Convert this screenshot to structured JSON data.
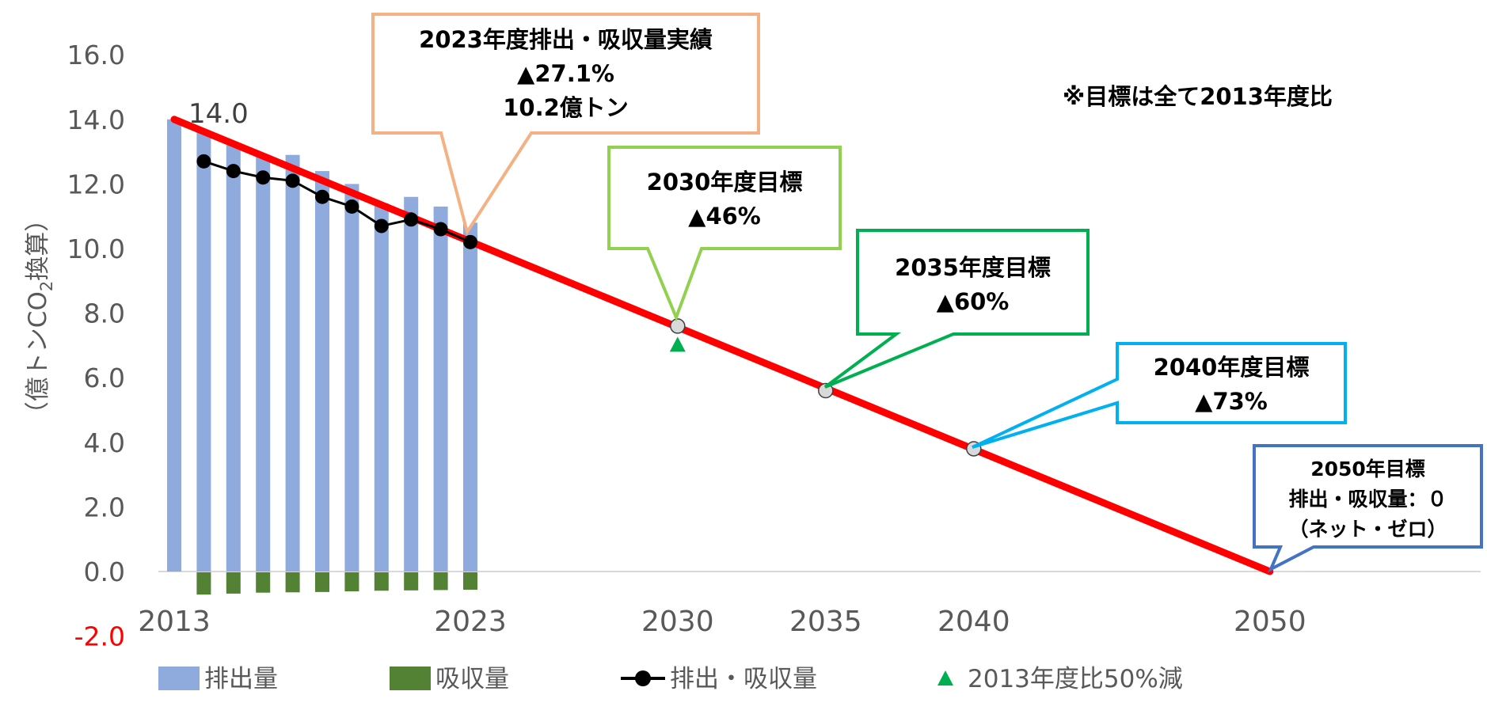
{
  "chart_data": {
    "type": "bar",
    "title": "",
    "ylabel": "（億トンCO2換算）",
    "ylabel_parts": {
      "pre": "（億トンCO",
      "sub": "2",
      "post": "換算）"
    },
    "ylim": [
      -2.0,
      16.0
    ],
    "yticks": [
      "16.0",
      "14.0",
      "12.0",
      "10.0",
      "8.0",
      "6.0",
      "4.0",
      "2.0",
      "0.0",
      "-2.0"
    ],
    "ytick_values": [
      16,
      14,
      12,
      10,
      8,
      6,
      4,
      2,
      0,
      -2
    ],
    "xlim": [
      2013,
      2050
    ],
    "xticks": [
      "2013",
      "2023",
      "2030",
      "2035",
      "2040",
      "2050"
    ],
    "xtick_values": [
      2013,
      2023,
      2030,
      2035,
      2040,
      2050
    ],
    "years": [
      2013,
      2014,
      2015,
      2016,
      2017,
      2018,
      2019,
      2020,
      2021,
      2022,
      2023
    ],
    "series": [
      {
        "name": "排出量",
        "type": "bar",
        "color": "#8FAADC",
        "values": [
          14.0,
          13.6,
          13.2,
          12.9,
          12.9,
          12.4,
          12.0,
          11.4,
          11.6,
          11.3,
          10.8
        ]
      },
      {
        "name": "吸収量",
        "type": "bar",
        "color": "#548235",
        "values": [
          null,
          -0.69,
          -0.66,
          -0.63,
          -0.62,
          -0.61,
          -0.59,
          -0.57,
          -0.56,
          -0.55,
          -0.54
        ]
      },
      {
        "name": "排出・吸収量",
        "type": "line",
        "color": "#000000",
        "values": [
          null,
          12.7,
          12.4,
          12.2,
          12.1,
          11.6,
          11.3,
          10.7,
          10.9,
          10.6,
          10.2
        ]
      },
      {
        "name": "2013年度比50%減",
        "type": "marker",
        "color": "#00B050",
        "points": [
          {
            "x": 2030,
            "y": 7.0
          }
        ]
      }
    ],
    "target_line": {
      "color": "#FF0000",
      "points": [
        {
          "x": 2013,
          "y": 14.0
        },
        {
          "x": 2050,
          "y": 0.0
        }
      ]
    },
    "target_points": [
      {
        "x": 2030,
        "y": 7.6
      },
      {
        "x": 2035,
        "y": 5.6
      },
      {
        "x": 2040,
        "y": 3.8
      }
    ],
    "data_label": "14.0",
    "note": "※目標は全て2013年度比",
    "annotations": [
      {
        "id": "actual-2023",
        "color": "#F4B183",
        "lines": [
          "2023年度排出・吸収量実績",
          "▲27.1%",
          "10.2億トン"
        ]
      },
      {
        "id": "target-2030",
        "color": "#92D050",
        "lines": [
          "2030年度目標",
          "▲46%"
        ]
      },
      {
        "id": "target-2035",
        "color": "#00B050",
        "lines": [
          "2035年度目標",
          "▲60%"
        ]
      },
      {
        "id": "target-2040",
        "color": "#00B0F0",
        "lines": [
          "2040年度目標",
          "▲73%"
        ]
      },
      {
        "id": "target-2050",
        "color": "#4472C4",
        "lines": [
          "2050年目標",
          "排出・吸収量：０",
          "（ネット・ゼロ）"
        ]
      }
    ],
    "legend": [
      "排出量",
      "吸収量",
      "排出・吸収量",
      "2013年度比50%減"
    ],
    "legend_position": "bottom"
  }
}
